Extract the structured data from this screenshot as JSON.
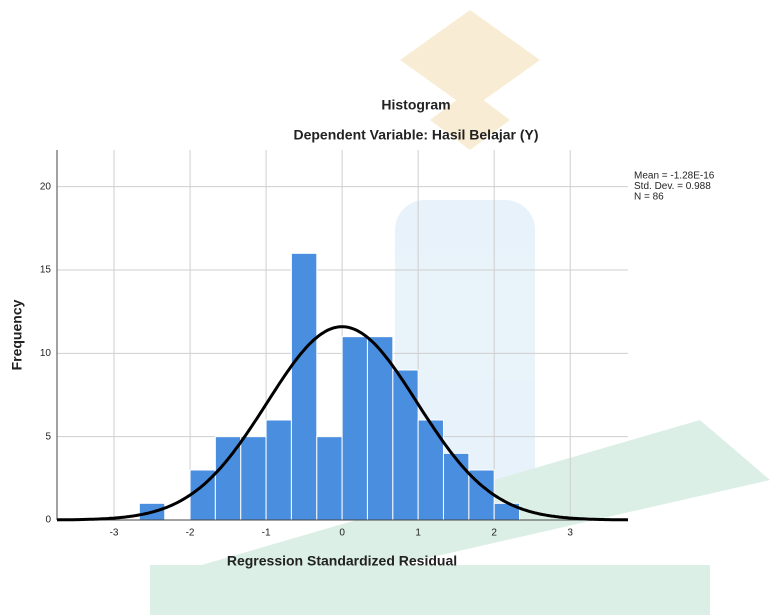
{
  "chart_data": {
    "type": "histogram",
    "title": "Histogram",
    "subtitle": "Dependent Variable: Hasil Belajar (Y)",
    "xlabel": "Regression Standardized Residual",
    "ylabel": "Frequency",
    "bins": [
      -2.667,
      -2.333,
      -2,
      -1.667,
      -1.333,
      -1,
      -0.667,
      -0.333,
      0,
      0.333,
      0.667,
      1,
      1.333,
      1.667,
      2,
      2.333
    ],
    "values": [
      1,
      0,
      3,
      5,
      5,
      6,
      16,
      5,
      11,
      11,
      9,
      6,
      4,
      3,
      1
    ],
    "color": "#4a8ee0",
    "xlim": [
      -3.75,
      3.76
    ],
    "ylim": [
      0,
      22.2
    ],
    "xticks": [
      -3,
      -2,
      -1,
      0,
      1,
      2,
      3
    ],
    "yticks": [
      0,
      5,
      10,
      15,
      20
    ],
    "grid": true,
    "normal_curve": {
      "mean": -1.28e-16,
      "sd": 0.988,
      "n": 86,
      "color": "#000000"
    },
    "annotations": [
      "Mean = -1.28E-16",
      "Std. Dev. = 0.988",
      "N = 86"
    ]
  }
}
